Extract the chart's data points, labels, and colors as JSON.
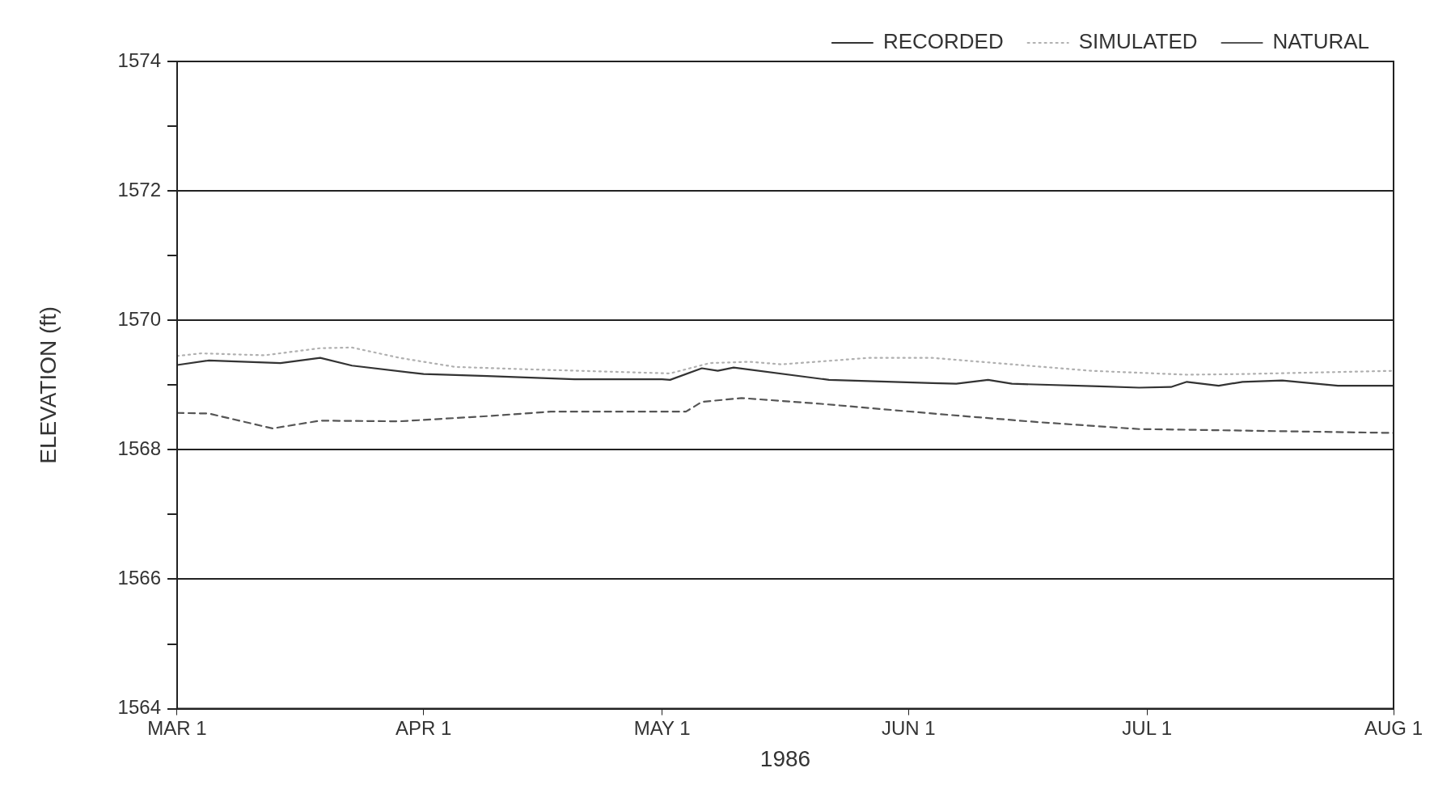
{
  "chart_data": {
    "type": "line",
    "xlabel": "1986",
    "ylabel": "ELEVATION (ft)",
    "xlim": [
      "1986-03-01",
      "1986-08-01"
    ],
    "xticks": [
      {
        "value": "1986-03-01",
        "label": "MAR 1"
      },
      {
        "value": "1986-04-01",
        "label": "APR 1"
      },
      {
        "value": "1986-05-01",
        "label": "MAY 1"
      },
      {
        "value": "1986-06-01",
        "label": "JUN 1"
      },
      {
        "value": "1986-07-01",
        "label": "JUL 1"
      },
      {
        "value": "1986-08-01",
        "label": "AUG 1"
      }
    ],
    "ylim": [
      1564,
      1574
    ],
    "yticks": [
      1564,
      {
        "value": 1565,
        "label": null
      },
      1566,
      {
        "value": 1567,
        "label": null
      },
      1568,
      {
        "value": 1569,
        "label": null
      },
      1570,
      {
        "value": 1571,
        "label": null
      },
      1572,
      {
        "value": 1573,
        "label": null
      },
      1574
    ],
    "grid": "y",
    "legend": "top right",
    "marker": "none",
    "series": [
      {
        "name": "RECORDED",
        "color": "#333333",
        "line_style": "solid",
        "x": [
          "1986-03-01",
          "1986-03-05",
          "1986-03-14",
          "1986-03-19",
          "1986-03-23",
          "1986-04-01",
          "1986-04-09",
          "1986-04-20",
          "1986-05-01",
          "1986-05-02",
          "1986-05-06",
          "1986-05-08",
          "1986-05-10",
          "1986-05-22",
          "1986-06-04",
          "1986-06-07",
          "1986-06-11",
          "1986-06-14",
          "1986-06-25",
          "1986-06-30",
          "1986-07-04",
          "1986-07-06",
          "1986-07-10",
          "1986-07-13",
          "1986-07-18",
          "1986-07-25",
          "1986-08-01"
        ],
        "values": [
          1569.31,
          1569.38,
          1569.34,
          1569.42,
          1569.3,
          1569.17,
          1569.14,
          1569.09,
          1569.09,
          1569.08,
          1569.26,
          1569.22,
          1569.27,
          1569.08,
          1569.03,
          1569.02,
          1569.08,
          1569.02,
          1568.98,
          1568.96,
          1568.97,
          1569.05,
          1568.99,
          1569.05,
          1569.07,
          1568.99,
          1568.99
        ]
      },
      {
        "name": "SIMULATED",
        "color": "#b0b0b0",
        "line_style": "dotted",
        "x": [
          "1986-03-01",
          "1986-03-04",
          "1986-03-12",
          "1986-03-19",
          "1986-03-23",
          "1986-03-29",
          "1986-04-05",
          "1986-04-15",
          "1986-05-02",
          "1986-05-07",
          "1986-05-12",
          "1986-05-16",
          "1986-05-27",
          "1986-06-04",
          "1986-06-13",
          "1986-06-24",
          "1986-07-06",
          "1986-07-13",
          "1986-08-01"
        ],
        "values": [
          1569.45,
          1569.49,
          1569.46,
          1569.57,
          1569.58,
          1569.42,
          1569.28,
          1569.24,
          1569.18,
          1569.34,
          1569.36,
          1569.32,
          1569.42,
          1569.42,
          1569.33,
          1569.22,
          1569.16,
          1569.17,
          1569.22
        ]
      },
      {
        "name": "NATURAL",
        "color": "#555555",
        "line_style": "dashed",
        "x": [
          "1986-03-01",
          "1986-03-05",
          "1986-03-13",
          "1986-03-19",
          "1986-03-29",
          "1986-04-09",
          "1986-04-17",
          "1986-05-04",
          "1986-05-06",
          "1986-05-11",
          "1986-05-21",
          "1986-06-05",
          "1986-06-17",
          "1986-06-30",
          "1986-07-06",
          "1986-08-01"
        ],
        "values": [
          1568.57,
          1568.56,
          1568.33,
          1568.45,
          1568.44,
          1568.52,
          1568.59,
          1568.59,
          1568.74,
          1568.8,
          1568.71,
          1568.55,
          1568.43,
          1568.32,
          1568.31,
          1568.26
        ]
      }
    ]
  }
}
